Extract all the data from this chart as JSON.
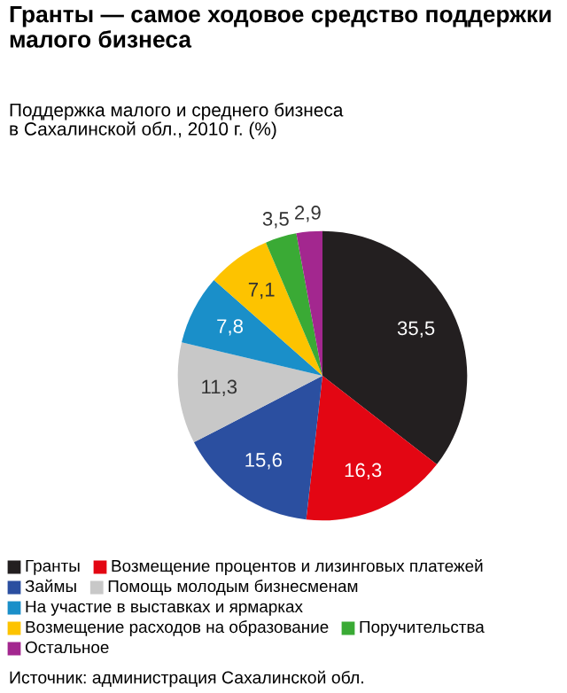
{
  "chart_data": {
    "type": "pie",
    "title": "Гранты — самое ходовое средство поддержки малого бизнеса",
    "subtitle": "Поддержка малого и среднего бизнеса\nв Сахалинской обл., 2010 г. (%)",
    "categories": [
      "Гранты",
      "Возмещение процентов и лизинговых платежей",
      "Займы",
      "Помощь молодым бизнесменам",
      "На участие в выставках и ярмарках",
      "Возмещение расходов на образование",
      "Поручительства",
      "Остальное"
    ],
    "values": [
      35.5,
      16.3,
      15.6,
      11.3,
      7.8,
      7.1,
      3.5,
      2.9
    ],
    "colors": [
      "#231f20",
      "#e30613",
      "#2b4fa0",
      "#c8c8c8",
      "#1a8fc9",
      "#fdc300",
      "#3aaa35",
      "#a3278f"
    ],
    "value_labels": [
      "35,5",
      "16,3",
      "15,6",
      "11,3",
      "7,8",
      "7,1",
      "3,5",
      "2,9"
    ],
    "legend": "bottom left",
    "annotations": [
      "Источник: администрация Сахалинской обл."
    ]
  }
}
